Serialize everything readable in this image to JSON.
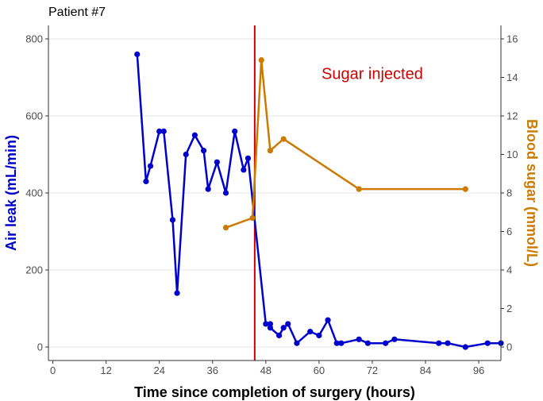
{
  "chart_data": {
    "type": "line",
    "title": "Patient #7",
    "xlabel": "Time since completion of surgery (hours)",
    "ylabel": "Air leak (mL/min)",
    "ylabel_right": "Blood sugar (mmol/L)",
    "xlim": [
      -1,
      101
    ],
    "ylim": [
      -35,
      835
    ],
    "ylim_right": [
      -0.7,
      16.7
    ],
    "xticks": [
      0,
      12,
      24,
      36,
      48,
      60,
      72,
      84,
      96
    ],
    "yticks": [
      0,
      200,
      400,
      600,
      800
    ],
    "yticks_right": [
      0,
      2,
      4,
      6,
      8,
      10,
      12,
      14,
      16
    ],
    "grid": true,
    "annotation": {
      "text": "Sugar injected",
      "x": 72,
      "y_right": 14.2,
      "color": "#cc0000"
    },
    "vline": {
      "x": 45.5,
      "color": "#cc0000"
    },
    "series": [
      {
        "name": "Air leak",
        "axis": "left",
        "color": "#0000cc",
        "x": [
          19,
          21,
          22,
          24,
          25,
          27,
          28,
          30,
          32,
          34,
          35,
          37,
          39,
          41,
          43,
          44,
          48,
          49,
          49,
          51,
          52,
          53,
          55,
          58,
          60,
          62,
          64,
          65,
          69,
          71,
          75,
          77,
          87,
          89,
          93,
          98,
          101
        ],
        "y": [
          760,
          430,
          470,
          560,
          560,
          330,
          140,
          500,
          550,
          510,
          410,
          480,
          400,
          560,
          460,
          490,
          60,
          60,
          50,
          30,
          50,
          60,
          10,
          40,
          30,
          70,
          10,
          10,
          20,
          10,
          10,
          20,
          10,
          10,
          0,
          10,
          10
        ]
      },
      {
        "name": "Blood sugar",
        "axis": "right",
        "color": "#cc7a00",
        "x": [
          39,
          45,
          47,
          49,
          52,
          69,
          93
        ],
        "y": [
          6.2,
          6.7,
          14.9,
          10.2,
          10.8,
          8.2,
          8.2
        ]
      }
    ]
  }
}
